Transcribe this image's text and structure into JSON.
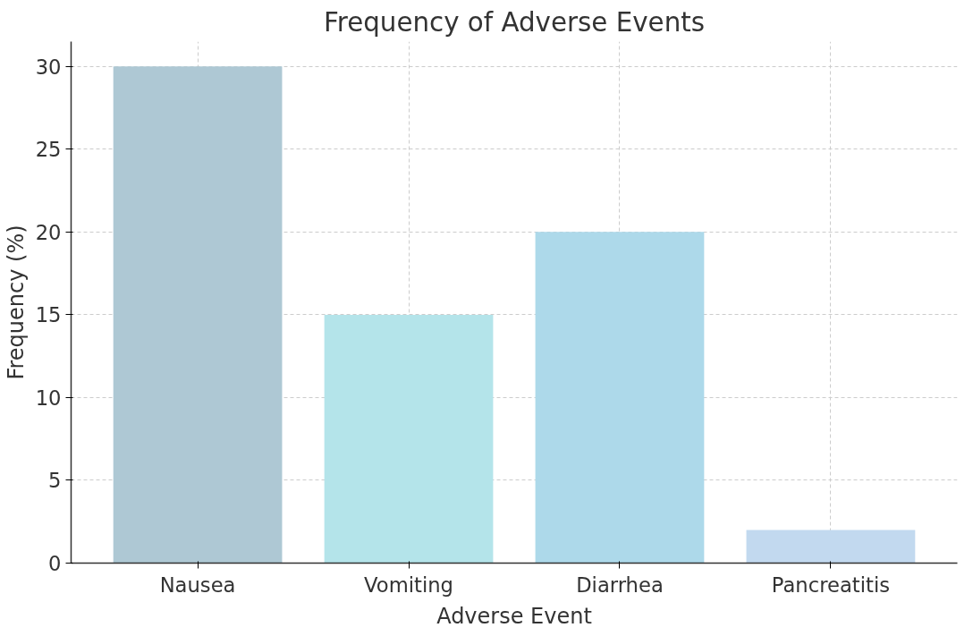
{
  "chart_data": {
    "type": "bar",
    "title": "Frequency of Adverse Events",
    "xlabel": "Adverse Event",
    "ylabel": "Frequency (%)",
    "categories": [
      "Nausea",
      "Vomiting",
      "Diarrhea",
      "Pancreatitis"
    ],
    "values": [
      30,
      15,
      20,
      2
    ],
    "colors": [
      "#aec8d4",
      "#b4e4ea",
      "#add9ea",
      "#c2d9ef"
    ],
    "ylim": [
      0,
      31.5
    ],
    "yticks": [
      0,
      5,
      10,
      15,
      20,
      25,
      30
    ],
    "grid": true
  }
}
